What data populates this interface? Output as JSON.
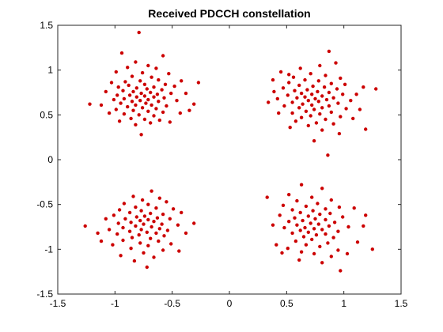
{
  "chart_data": {
    "type": "scatter",
    "title": "Received PDCCH constellation",
    "xlabel": "",
    "ylabel": "",
    "xlim": [
      -1.5,
      1.5
    ],
    "ylim": [
      -1.5,
      1.5
    ],
    "xticks": [
      -1.5,
      -1,
      -0.5,
      0,
      0.5,
      1,
      1.5
    ],
    "yticks": [
      -1.5,
      -1,
      -0.5,
      0,
      0.5,
      1,
      1.5
    ],
    "xtick_labels": [
      "-1.5",
      "-1",
      "-0.5",
      "0",
      "0.5",
      "1",
      "1.5"
    ],
    "ytick_labels": [
      "-1.5",
      "-1",
      "-0.5",
      "0",
      "0.5",
      "1",
      "1.5"
    ],
    "grid": false,
    "marker_color": "#cc0000",
    "series": [
      {
        "points": [
          [
            -0.79,
            1.42
          ],
          [
            -0.94,
            1.19
          ],
          [
            -0.58,
            1.16
          ],
          [
            -0.82,
            1.09
          ],
          [
            -0.71,
            1.05
          ],
          [
            -0.89,
            1.03
          ],
          [
            -0.64,
            1.02
          ],
          [
            -0.99,
            0.98
          ],
          [
            -0.76,
            0.97
          ],
          [
            -0.53,
            0.96
          ],
          [
            -0.85,
            0.93
          ],
          [
            -0.68,
            0.92
          ],
          [
            -0.42,
            0.88
          ],
          [
            -1.03,
            0.86
          ],
          [
            -0.91,
            0.87
          ],
          [
            -0.78,
            0.88
          ],
          [
            -0.62,
            0.89
          ],
          [
            -0.56,
            0.84
          ],
          [
            -0.74,
            0.84
          ],
          [
            -0.88,
            0.83
          ],
          [
            -0.97,
            0.81
          ],
          [
            -0.48,
            0.82
          ],
          [
            -0.66,
            0.81
          ],
          [
            -0.81,
            0.8
          ],
          [
            -0.72,
            0.79
          ],
          [
            -0.59,
            0.78
          ],
          [
            -0.93,
            0.77
          ],
          [
            -1.08,
            0.76
          ],
          [
            -0.84,
            0.76
          ],
          [
            -0.69,
            0.75
          ],
          [
            -0.77,
            0.74
          ],
          [
            -0.63,
            0.73
          ],
          [
            -0.51,
            0.74
          ],
          [
            -0.98,
            0.72
          ],
          [
            -0.87,
            0.72
          ],
          [
            -0.74,
            0.71
          ],
          [
            -0.81,
            0.7
          ],
          [
            -0.66,
            0.7
          ],
          [
            -0.57,
            0.69
          ],
          [
            -0.92,
            0.68
          ],
          [
            -1.01,
            0.67
          ],
          [
            -0.71,
            0.67
          ],
          [
            -0.78,
            0.66
          ],
          [
            -0.85,
            0.65
          ],
          [
            -0.62,
            0.65
          ],
          [
            -0.46,
            0.66
          ],
          [
            -0.95,
            0.63
          ],
          [
            -0.73,
            0.63
          ],
          [
            -0.68,
            0.61
          ],
          [
            -0.82,
            0.61
          ],
          [
            -0.55,
            0.6
          ],
          [
            -0.89,
            0.59
          ],
          [
            -1.12,
            0.61
          ],
          [
            -1.22,
            0.62
          ],
          [
            -0.76,
            0.58
          ],
          [
            -0.64,
            0.57
          ],
          [
            -0.99,
            0.56
          ],
          [
            -0.84,
            0.55
          ],
          [
            -0.71,
            0.54
          ],
          [
            -0.58,
            0.53
          ],
          [
            -0.92,
            0.51
          ],
          [
            -0.79,
            0.5
          ],
          [
            -0.66,
            0.49
          ],
          [
            -0.43,
            0.52
          ],
          [
            -0.86,
            0.46
          ],
          [
            -0.74,
            0.45
          ],
          [
            -0.61,
            0.44
          ],
          [
            -0.96,
            0.43
          ],
          [
            -0.69,
            0.41
          ],
          [
            -0.52,
            0.42
          ],
          [
            -0.82,
            0.39
          ],
          [
            -0.27,
            0.86
          ],
          [
            -0.31,
            0.62
          ],
          [
            -0.38,
            0.74
          ],
          [
            -0.77,
            0.28
          ],
          [
            -1.05,
            0.52
          ],
          [
            -0.35,
            0.55
          ]
        ]
      },
      {
        "points": [
          [
            0.87,
            1.21
          ],
          [
            0.79,
            1.05
          ],
          [
            0.62,
            1.02
          ],
          [
            0.93,
            1.08
          ],
          [
            0.45,
            0.98
          ],
          [
            0.71,
            0.96
          ],
          [
            0.84,
            0.94
          ],
          [
            0.56,
            0.92
          ],
          [
            0.97,
            0.91
          ],
          [
            0.66,
            0.89
          ],
          [
            0.78,
            0.88
          ],
          [
            0.52,
            0.86
          ],
          [
            0.89,
            0.85
          ],
          [
            1.01,
            0.84
          ],
          [
            0.61,
            0.83
          ],
          [
            0.73,
            0.82
          ],
          [
            0.83,
            0.81
          ],
          [
            0.47,
            0.8
          ],
          [
            0.94,
            0.79
          ],
          [
            0.68,
            0.78
          ],
          [
            1.28,
            0.79
          ],
          [
            0.57,
            0.77
          ],
          [
            0.77,
            0.76
          ],
          [
            0.87,
            0.75
          ],
          [
            0.63,
            0.74
          ],
          [
            0.99,
            0.73
          ],
          [
            0.72,
            0.73
          ],
          [
            0.51,
            0.72
          ],
          [
            0.81,
            0.71
          ],
          [
            0.66,
            0.7
          ],
          [
            0.91,
            0.69
          ],
          [
            0.59,
            0.69
          ],
          [
            0.75,
            0.68
          ],
          [
            0.42,
            0.68
          ],
          [
            0.85,
            0.67
          ],
          [
            1.06,
            0.66
          ],
          [
            0.69,
            0.66
          ],
          [
            0.78,
            0.65
          ],
          [
            0.55,
            0.64
          ],
          [
            0.95,
            0.63
          ],
          [
            0.64,
            0.62
          ],
          [
            0.72,
            0.61
          ],
          [
            0.87,
            0.6
          ],
          [
            0.48,
            0.6
          ],
          [
            0.81,
            0.58
          ],
          [
            0.61,
            0.58
          ],
          [
            1.02,
            0.57
          ],
          [
            0.74,
            0.56
          ],
          [
            0.67,
            0.54
          ],
          [
            0.89,
            0.53
          ],
          [
            0.55,
            0.52
          ],
          [
            0.79,
            0.51
          ],
          [
            0.71,
            0.49
          ],
          [
            0.97,
            0.48
          ],
          [
            0.63,
            0.47
          ],
          [
            0.84,
            0.45
          ],
          [
            0.58,
            0.43
          ],
          [
            0.76,
            0.41
          ],
          [
            0.91,
            0.4
          ],
          [
            0.69,
            0.38
          ],
          [
            0.53,
            0.36
          ],
          [
            1.19,
            0.34
          ],
          [
            0.81,
            0.33
          ],
          [
            0.74,
            0.21
          ],
          [
            0.86,
            0.05
          ],
          [
            0.34,
            0.64
          ],
          [
            0.39,
            0.76
          ],
          [
            1.14,
            0.56
          ],
          [
            1.11,
            0.73
          ],
          [
            0.43,
            0.52
          ],
          [
            1.08,
            0.46
          ],
          [
            0.38,
            0.89
          ],
          [
            0.96,
            0.29
          ],
          [
            0.52,
            0.95
          ],
          [
            1.17,
            0.81
          ]
        ]
      },
      {
        "points": [
          [
            -0.68,
            -0.35
          ],
          [
            -0.84,
            -0.41
          ],
          [
            -0.61,
            -0.43
          ],
          [
            -0.76,
            -0.45
          ],
          [
            -0.55,
            -0.47
          ],
          [
            -0.92,
            -0.49
          ],
          [
            -0.71,
            -0.5
          ],
          [
            -0.82,
            -0.53
          ],
          [
            -0.64,
            -0.54
          ],
          [
            -0.49,
            -0.55
          ],
          [
            -0.96,
            -0.56
          ],
          [
            -0.77,
            -0.57
          ],
          [
            -0.87,
            -0.59
          ],
          [
            -0.69,
            -0.6
          ],
          [
            -0.58,
            -0.61
          ],
          [
            -1.01,
            -0.62
          ],
          [
            -0.74,
            -0.63
          ],
          [
            -0.81,
            -0.64
          ],
          [
            -0.63,
            -0.65
          ],
          [
            -0.91,
            -0.66
          ],
          [
            -0.52,
            -0.66
          ],
          [
            -0.71,
            -0.67
          ],
          [
            -0.78,
            -0.68
          ],
          [
            -0.66,
            -0.69
          ],
          [
            -0.86,
            -0.7
          ],
          [
            -0.97,
            -0.71
          ],
          [
            -0.59,
            -0.72
          ],
          [
            -0.75,
            -0.72
          ],
          [
            -0.45,
            -0.73
          ],
          [
            -0.82,
            -0.74
          ],
          [
            -0.68,
            -0.75
          ],
          [
            -0.93,
            -0.76
          ],
          [
            -0.61,
            -0.77
          ],
          [
            -1.05,
            -0.78
          ],
          [
            -0.77,
            -0.78
          ],
          [
            -0.54,
            -0.79
          ],
          [
            -0.87,
            -0.8
          ],
          [
            -0.72,
            -0.81
          ],
          [
            -0.64,
            -0.82
          ],
          [
            -0.98,
            -0.83
          ],
          [
            -0.79,
            -0.84
          ],
          [
            -0.57,
            -0.85
          ],
          [
            -0.85,
            -0.87
          ],
          [
            -0.69,
            -0.88
          ],
          [
            -0.93,
            -0.9
          ],
          [
            -0.62,
            -0.91
          ],
          [
            -0.78,
            -0.93
          ],
          [
            -1.02,
            -0.95
          ],
          [
            -0.71,
            -0.96
          ],
          [
            -0.86,
            -0.99
          ],
          [
            -0.58,
            -1.01
          ],
          [
            -0.75,
            -1.04
          ],
          [
            -0.95,
            -1.07
          ],
          [
            -0.66,
            -1.09
          ],
          [
            -0.83,
            -1.13
          ],
          [
            -0.72,
            -1.2
          ],
          [
            -1.26,
            -0.74
          ],
          [
            -0.38,
            -0.82
          ],
          [
            -0.42,
            -0.59
          ],
          [
            -1.08,
            -0.66
          ],
          [
            -0.31,
            -0.71
          ],
          [
            -1.12,
            -0.91
          ],
          [
            -0.51,
            -0.94
          ],
          [
            -0.44,
            -1.02
          ],
          [
            -1.15,
            -0.82
          ]
        ]
      },
      {
        "points": [
          [
            0.63,
            -0.28
          ],
          [
            0.81,
            -0.32
          ],
          [
            0.52,
            -0.39
          ],
          [
            0.72,
            -0.42
          ],
          [
            0.33,
            -0.42
          ],
          [
            0.89,
            -0.45
          ],
          [
            0.59,
            -0.46
          ],
          [
            0.77,
            -0.49
          ],
          [
            0.47,
            -0.51
          ],
          [
            0.67,
            -0.52
          ],
          [
            0.96,
            -0.53
          ],
          [
            0.84,
            -0.55
          ],
          [
            0.55,
            -0.56
          ],
          [
            0.73,
            -0.57
          ],
          [
            0.62,
            -0.59
          ],
          [
            0.88,
            -0.6
          ],
          [
            0.79,
            -0.61
          ],
          [
            0.44,
            -0.62
          ],
          [
            0.69,
            -0.63
          ],
          [
            0.99,
            -0.64
          ],
          [
            0.57,
            -0.65
          ],
          [
            0.75,
            -0.66
          ],
          [
            0.84,
            -0.67
          ],
          [
            0.64,
            -0.68
          ],
          [
            0.52,
            -0.69
          ],
          [
            0.92,
            -0.7
          ],
          [
            0.71,
            -0.71
          ],
          [
            0.78,
            -0.72
          ],
          [
            0.59,
            -0.73
          ],
          [
            0.87,
            -0.74
          ],
          [
            1.04,
            -0.75
          ],
          [
            0.66,
            -0.76
          ],
          [
            0.48,
            -0.76
          ],
          [
            0.74,
            -0.77
          ],
          [
            0.81,
            -0.78
          ],
          [
            0.62,
            -0.79
          ],
          [
            0.95,
            -0.8
          ],
          [
            0.69,
            -0.81
          ],
          [
            0.55,
            -0.82
          ],
          [
            0.84,
            -0.83
          ],
          [
            0.76,
            -0.84
          ],
          [
            0.65,
            -0.86
          ],
          [
            0.91,
            -0.87
          ],
          [
            0.72,
            -0.89
          ],
          [
            0.58,
            -0.91
          ],
          [
            0.86,
            -0.93
          ],
          [
            0.67,
            -0.95
          ],
          [
            0.79,
            -0.97
          ],
          [
            0.51,
            -0.99
          ],
          [
            0.95,
            -1.01
          ],
          [
            0.63,
            -1.03
          ],
          [
            0.74,
            -1.05
          ],
          [
            0.89,
            -1.08
          ],
          [
            0.97,
            -1.24
          ],
          [
            1.19,
            -0.62
          ],
          [
            1.25,
            -1.0
          ],
          [
            1.17,
            -0.74
          ],
          [
            1.12,
            -0.92
          ],
          [
            1.09,
            -0.54
          ],
          [
            0.41,
            -0.95
          ],
          [
            0.38,
            -0.73
          ],
          [
            0.46,
            -1.04
          ],
          [
            1.03,
            -1.05
          ],
          [
            0.61,
            -1.12
          ],
          [
            0.81,
            -1.15
          ]
        ]
      }
    ]
  }
}
